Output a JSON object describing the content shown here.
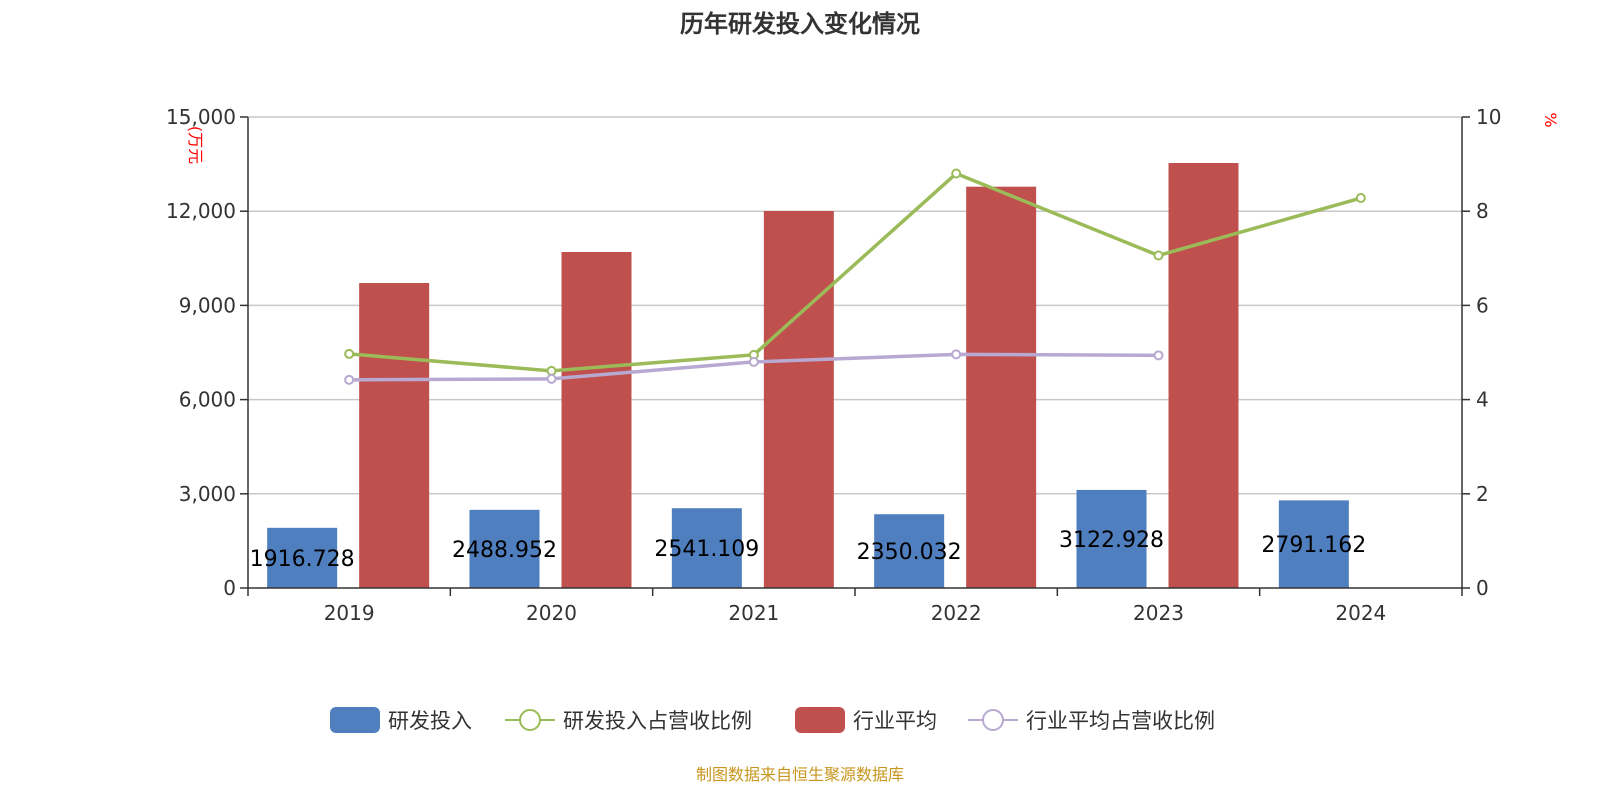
{
  "chart_data": {
    "type": "bar",
    "title": "历年研发投入变化情况",
    "categories": [
      "2019",
      "2020",
      "2021",
      "2022",
      "2023",
      "2024"
    ],
    "left_axis": {
      "label": "(万元",
      "ticks": [
        "0",
        "3,000",
        "6,000",
        "9,000",
        "12,000",
        "15,000"
      ],
      "range": [
        0,
        15000
      ]
    },
    "right_axis": {
      "label": "%",
      "ticks": [
        "0",
        "2",
        "4",
        "6",
        "8",
        "10"
      ],
      "range": [
        0,
        10
      ]
    },
    "series": [
      {
        "name": "研发投入",
        "type": "bar",
        "axis": "left",
        "color": "#4f7fbe",
        "values": [
          1916.728,
          2488.952,
          2541.109,
          2350.032,
          3122.928,
          2791.162
        ],
        "labels": [
          "1916.728",
          "2488.952",
          "2541.109",
          "2350.032",
          "3122.928",
          "2791.162"
        ]
      },
      {
        "name": "研发投入占营收比例",
        "type": "line",
        "axis": "right",
        "color": "#9bbb59",
        "values": [
          4.97,
          4.61,
          4.95,
          8.8,
          7.06,
          8.28
        ]
      },
      {
        "name": "行业平均",
        "type": "bar",
        "axis": "left",
        "color": "#c0504d",
        "values": [
          9713,
          10701,
          12006,
          12781,
          13535,
          null
        ]
      },
      {
        "name": "行业平均占营收比例",
        "type": "line",
        "axis": "right",
        "color": "#b7a9d1",
        "values": [
          4.42,
          4.44,
          4.8,
          4.96,
          4.94,
          null
        ]
      }
    ],
    "grid": true,
    "legend_position": "bottom"
  },
  "source": "制图数据来自恒生聚源数据库"
}
